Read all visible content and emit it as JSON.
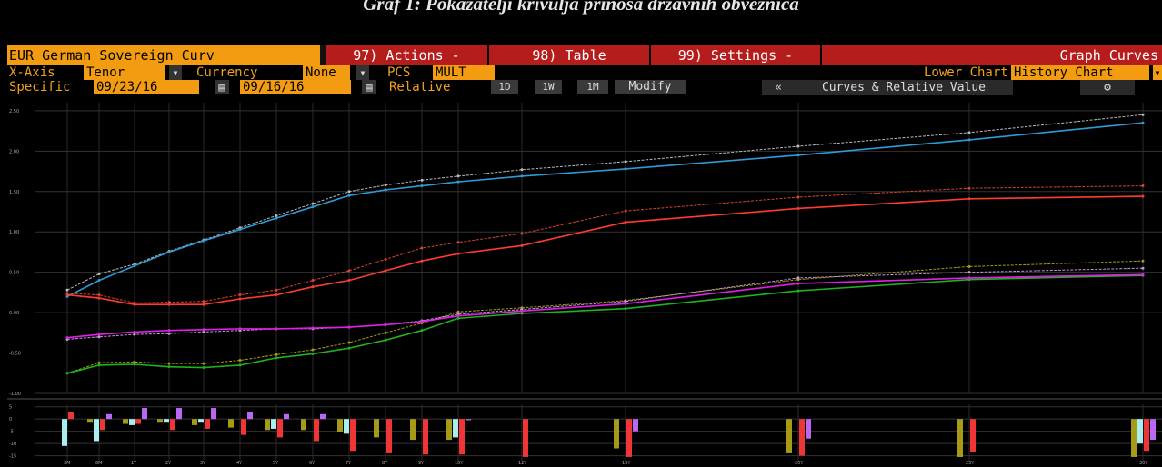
{
  "page_title": "Graf 1: Pokazatelji krivulja prinosa državnih obveznica",
  "toolbar": {
    "ticker": "EUR German Sovereign Curv",
    "actions": "97) Actions -",
    "table": "98) Table",
    "settings": "99) Settings -",
    "graph_curves": "Graph Curves"
  },
  "controls": {
    "xaxis_label": "X-Axis",
    "xaxis_value": "Tenor",
    "currency_label": "Currency",
    "currency_value": "None",
    "pcs_label": "PCS",
    "pcs_value": "MULT",
    "lower_chart_label": "Lower Chart",
    "lower_chart_value": "History Chart",
    "specific_label": "Specific",
    "date1": "09/23/16",
    "date2": "09/16/16",
    "relative_label": "Relative",
    "btn_1d": "1D",
    "btn_1w": "1W",
    "btn_1m": "1M",
    "modify": "Modify",
    "collapse": "«",
    "curves_relative": "Curves & Relative Value",
    "dropdown_glyph": "▾",
    "calendar_glyph": "▤",
    "gear_glyph": "⚙"
  },
  "colors": {
    "blue": "#2f9bd6",
    "blue_prev": "#bbbbbb",
    "red": "#ff3b2f",
    "red_prev": "#d9432f",
    "green": "#1fb21f",
    "olive_prev": "#a39b14",
    "magenta": "#e020e8",
    "lavender_prev": "#c59ad8",
    "bar_olive": "#a59b16",
    "bar_cyan": "#a8f0f0",
    "bar_red": "#ef3535",
    "bar_purple": "#bb66f5"
  },
  "chart_data": [
    {
      "type": "line",
      "x": [
        "3M",
        "6M",
        "1Y",
        "2Y",
        "3Y",
        "4Y",
        "5Y",
        "6Y",
        "7Y",
        "8Y",
        "9Y",
        "10Y",
        "12Y",
        "15Y",
        "20Y",
        "25Y",
        "30Y"
      ],
      "ylim": [
        -1.0,
        2.6
      ],
      "yticks": [
        "2.50",
        "2.00",
        "1.50",
        "1.00",
        "0.50",
        "0.00",
        "-0.50",
        "-1.00"
      ],
      "grid": true,
      "series": [
        {
          "color_key": "blue_prev",
          "dashed": true,
          "values": [
            0.28,
            0.48,
            0.6,
            0.76,
            0.9,
            1.05,
            1.2,
            1.35,
            1.5,
            1.58,
            1.64,
            1.69,
            1.77,
            1.87,
            2.06,
            2.23,
            2.45
          ]
        },
        {
          "color_key": "blue",
          "dashed": false,
          "values": [
            0.2,
            0.4,
            0.58,
            0.75,
            0.89,
            1.03,
            1.17,
            1.31,
            1.45,
            1.52,
            1.57,
            1.62,
            1.69,
            1.78,
            1.95,
            2.14,
            2.35
          ]
        },
        {
          "color_key": "red_prev",
          "dashed": true,
          "values": [
            0.24,
            0.22,
            0.12,
            0.13,
            0.14,
            0.22,
            0.28,
            0.4,
            0.52,
            0.66,
            0.8,
            0.87,
            0.98,
            1.26,
            1.43,
            1.54,
            1.57
          ]
        },
        {
          "color_key": "red",
          "dashed": false,
          "values": [
            0.22,
            0.18,
            0.1,
            0.1,
            0.1,
            0.17,
            0.22,
            0.32,
            0.4,
            0.52,
            0.64,
            0.73,
            0.83,
            1.12,
            1.29,
            1.41,
            1.44
          ]
        },
        {
          "color_key": "olive_prev",
          "dashed": true,
          "values": [
            -0.75,
            -0.62,
            -0.61,
            -0.63,
            -0.63,
            -0.59,
            -0.52,
            -0.46,
            -0.37,
            -0.25,
            -0.13,
            0.01,
            0.06,
            0.15,
            0.41,
            0.57,
            0.64
          ]
        },
        {
          "color_key": "green",
          "dashed": false,
          "values": [
            -0.75,
            -0.65,
            -0.64,
            -0.67,
            -0.68,
            -0.65,
            -0.56,
            -0.51,
            -0.44,
            -0.34,
            -0.22,
            -0.07,
            -0.01,
            0.05,
            0.27,
            0.41,
            0.46
          ]
        },
        {
          "color_key": "lavender_prev",
          "dashed": true,
          "values": [
            -0.33,
            -0.3,
            -0.27,
            -0.26,
            -0.24,
            -0.22,
            -0.2,
            -0.2,
            -0.18,
            -0.15,
            -0.1,
            -0.02,
            0.04,
            0.14,
            0.43,
            0.5,
            0.55
          ]
        },
        {
          "color_key": "magenta",
          "dashed": false,
          "values": [
            -0.31,
            -0.27,
            -0.24,
            -0.22,
            -0.21,
            -0.2,
            -0.2,
            -0.19,
            -0.18,
            -0.15,
            -0.11,
            -0.04,
            0.02,
            0.11,
            0.36,
            0.43,
            0.47
          ]
        }
      ]
    },
    {
      "type": "bar",
      "categories": [
        "3M",
        "6M",
        "1Y",
        "2Y",
        "3Y",
        "4Y",
        "5Y",
        "6Y",
        "7Y",
        "8Y",
        "9Y",
        "10Y",
        "12Y",
        "15Y",
        "20Y",
        "25Y",
        "30Y"
      ],
      "ylim": [
        -17,
        6
      ],
      "yticks": [
        "5",
        "0",
        "-5",
        "-10",
        "-15"
      ],
      "series": [
        {
          "color_key": "bar_olive",
          "values": [
            0,
            -1.5,
            -2.0,
            -1.5,
            -2.5,
            -3.5,
            -4.5,
            -4.5,
            -5.5,
            -7.5,
            -8.5,
            -8.5,
            0,
            -12,
            -14,
            -15.5,
            -15.5
          ]
        },
        {
          "color_key": "bar_cyan",
          "values": [
            -11,
            -9,
            -2.5,
            -1.5,
            -1.5,
            0,
            -4,
            0,
            -6,
            0,
            0,
            -7.5,
            0,
            0,
            0,
            0,
            -10
          ]
        },
        {
          "color_key": "bar_red",
          "values": [
            3,
            -4.5,
            -2,
            -4.5,
            -4,
            -6.5,
            -7.5,
            -9,
            -13,
            -14,
            -14.5,
            -14.5,
            -15.5,
            -15.5,
            -15,
            -13.5,
            -13
          ]
        },
        {
          "color_key": "bar_purple",
          "values": [
            0,
            2,
            4.5,
            4.5,
            4.5,
            3,
            2,
            2,
            0,
            0,
            0,
            -0.5,
            0,
            -5,
            -8,
            0,
            -8.5
          ]
        }
      ]
    }
  ]
}
